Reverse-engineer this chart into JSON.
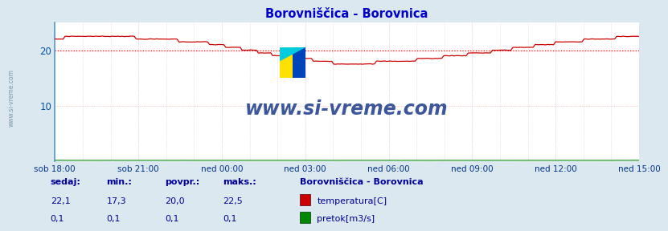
{
  "title": "Borovniščica - Borovnica",
  "bg_color": "#dce8f0",
  "plot_bg_color": "#ffffff",
  "grid_color_major": "#aaccdd",
  "grid_color_minor_v": "#ddbbbb",
  "grid_color_minor_h": "#ffcccc",
  "y_label_color": "#0055aa",
  "x_tick_color": "#003388",
  "title_color": "#0000cc",
  "ylim": [
    0,
    25
  ],
  "yticks": [
    10,
    20
  ],
  "x_labels": [
    "sob 18:00",
    "sob 21:00",
    "ned 00:00",
    "ned 03:00",
    "ned 06:00",
    "ned 09:00",
    "ned 12:00",
    "ned 15:00"
  ],
  "n_points": 288,
  "temp_color": "#cc0000",
  "flow_color": "#008800",
  "avg_line_color": "#ff0000",
  "avg_temp": 20.0,
  "watermark_text": "www.si-vreme.com",
  "watermark_color": "#1a3a8a",
  "legend_title": "Borovniščica - Borovnica",
  "legend_title_color": "#000099",
  "legend_items": [
    "temperatura[C]",
    "pretok[m3/s]"
  ],
  "legend_colors": [
    "#cc0000",
    "#008800"
  ],
  "stats_labels": [
    "sedaj:",
    "min.:",
    "povpr.:",
    "maks.:"
  ],
  "stats_temp": [
    "22,1",
    "17,3",
    "20,0",
    "22,5"
  ],
  "stats_flow": [
    "0,1",
    "0,1",
    "0,1",
    "0,1"
  ],
  "stats_color": "#000099",
  "left_label": "www.si-vreme.com",
  "left_label_color": "#7799aa",
  "spine_color": "#5599cc",
  "arrow_color": "#cc2222"
}
